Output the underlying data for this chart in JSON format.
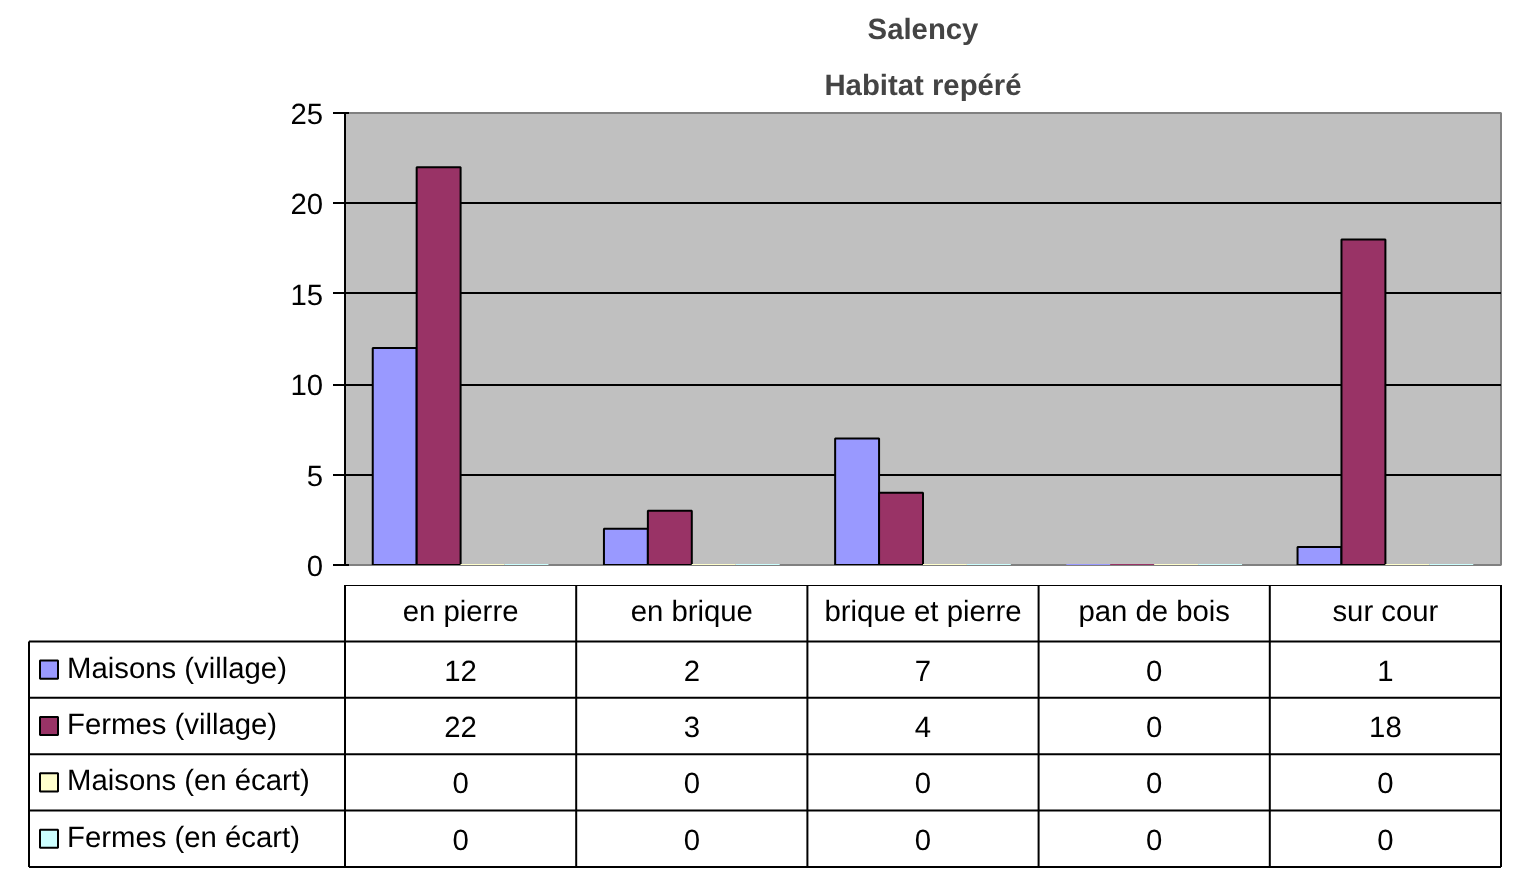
{
  "chart_data": {
    "type": "bar",
    "title": "Salency",
    "subtitle": "Habitat repéré",
    "categories": [
      "en pierre",
      "en brique",
      "brique et pierre",
      "pan de bois",
      "sur cour"
    ],
    "series": [
      {
        "name": "Maisons (village)",
        "color": "#9999ff",
        "values": [
          12,
          2,
          7,
          0,
          1
        ]
      },
      {
        "name": "Fermes (village)",
        "color": "#993366",
        "values": [
          22,
          3,
          4,
          0,
          18
        ]
      },
      {
        "name": "Maisons (en écart)",
        "color": "#ffffcc",
        "values": [
          0,
          0,
          0,
          0,
          0
        ]
      },
      {
        "name": "Fermes (en écart)",
        "color": "#ccffff",
        "values": [
          0,
          0,
          0,
          0,
          0
        ]
      }
    ],
    "ylim": [
      0,
      25
    ],
    "yticks": [
      0,
      5,
      10,
      15,
      20,
      25
    ],
    "grid": "y",
    "data_labels": true,
    "legend": "bottom"
  }
}
